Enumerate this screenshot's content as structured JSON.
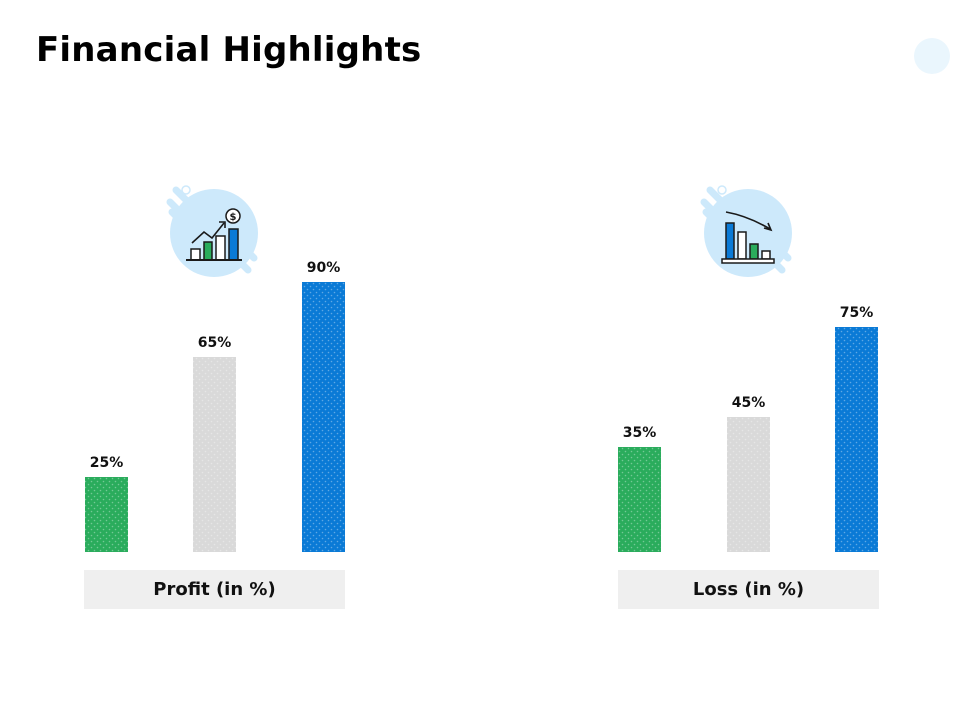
{
  "title": "Financial Highlights",
  "colors": {
    "green": "#2aac5c",
    "gray": "#d9d9d9",
    "blue": "#0a7ad6",
    "icon_circle": "#cde9fb",
    "caption_bg": "#efefef"
  },
  "chart_data": [
    {
      "type": "bar",
      "categories": [
        "",
        "",
        ""
      ],
      "values": [
        25,
        65,
        90
      ],
      "labels": [
        "25%",
        "65%",
        "90%"
      ],
      "caption": "Profit (in %)",
      "icon": "growth-chart-dollar-icon",
      "ylim": [
        0,
        100
      ]
    },
    {
      "type": "bar",
      "categories": [
        "",
        "",
        ""
      ],
      "values": [
        35,
        45,
        75
      ],
      "labels": [
        "35%",
        "45%",
        "75%"
      ],
      "caption": "Loss (in %)",
      "icon": "declining-chart-icon",
      "ylim": [
        0,
        100
      ]
    }
  ]
}
